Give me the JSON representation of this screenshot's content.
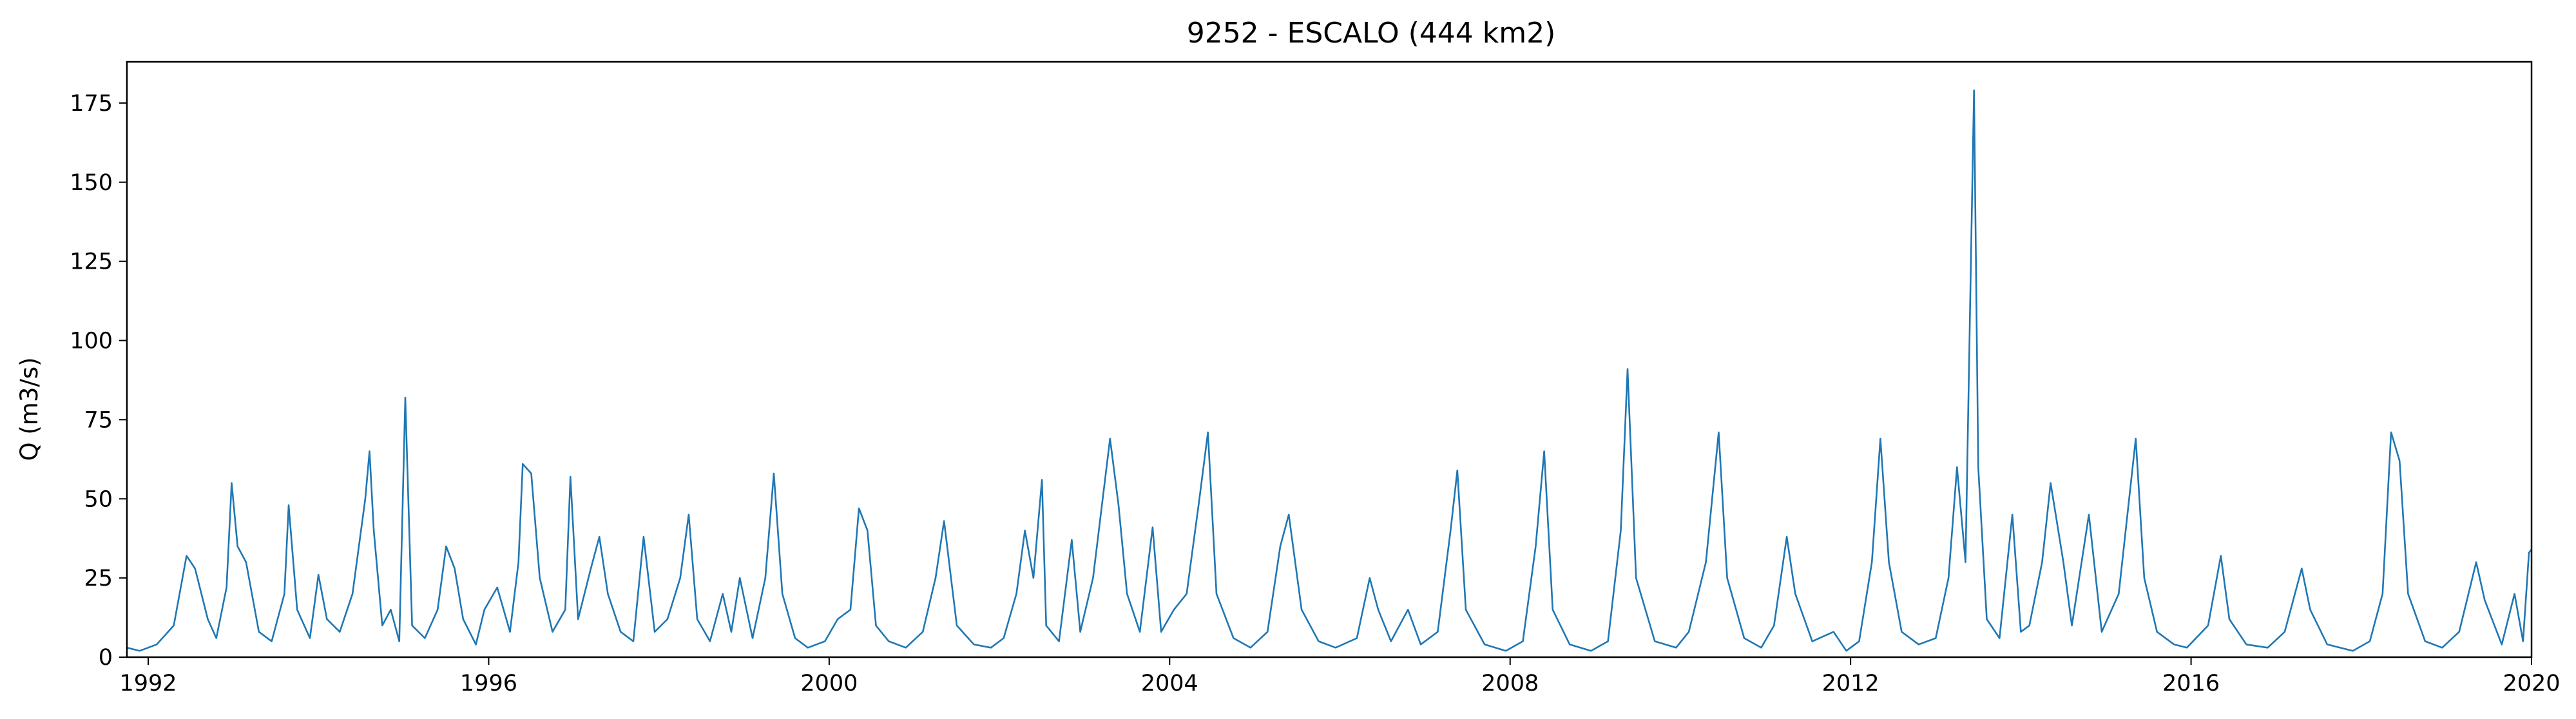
{
  "chart_data": {
    "type": "line",
    "title": "9252 - ESCALO (444 km2)",
    "xlabel": "",
    "ylabel": "Q (m3/s)",
    "xlim": [
      1991.75,
      2020.0
    ],
    "ylim": [
      0,
      188
    ],
    "x_ticks": [
      1992,
      1996,
      2000,
      2004,
      2008,
      2012,
      2016,
      2020
    ],
    "x_tick_labels": [
      "1992",
      "1996",
      "2000",
      "2004",
      "2008",
      "2012",
      "2016",
      "2020"
    ],
    "y_ticks": [
      0,
      25,
      50,
      75,
      100,
      125,
      150,
      175
    ],
    "y_tick_labels": [
      "0",
      "25",
      "50",
      "75",
      "100",
      "125",
      "150",
      "175"
    ],
    "grid": false,
    "line_color": "#1f77b4",
    "series": [
      {
        "name": "",
        "points": [
          [
            1991.75,
            3
          ],
          [
            1991.9,
            2
          ],
          [
            1992.1,
            4
          ],
          [
            1992.3,
            10
          ],
          [
            1992.45,
            32
          ],
          [
            1992.55,
            28
          ],
          [
            1992.7,
            12
          ],
          [
            1992.8,
            6
          ],
          [
            1992.92,
            22
          ],
          [
            1992.98,
            55
          ],
          [
            1993.05,
            35
          ],
          [
            1993.15,
            30
          ],
          [
            1993.3,
            8
          ],
          [
            1993.45,
            5
          ],
          [
            1993.6,
            20
          ],
          [
            1993.65,
            48
          ],
          [
            1993.75,
            15
          ],
          [
            1993.9,
            6
          ],
          [
            1994.0,
            26
          ],
          [
            1994.1,
            12
          ],
          [
            1994.25,
            8
          ],
          [
            1994.4,
            20
          ],
          [
            1994.55,
            50
          ],
          [
            1994.6,
            65
          ],
          [
            1994.65,
            40
          ],
          [
            1994.75,
            10
          ],
          [
            1994.85,
            15
          ],
          [
            1994.95,
            5
          ],
          [
            1995.02,
            82
          ],
          [
            1995.1,
            10
          ],
          [
            1995.25,
            6
          ],
          [
            1995.4,
            15
          ],
          [
            1995.5,
            35
          ],
          [
            1995.6,
            28
          ],
          [
            1995.7,
            12
          ],
          [
            1995.85,
            4
          ],
          [
            1995.95,
            15
          ],
          [
            1996.1,
            22
          ],
          [
            1996.25,
            8
          ],
          [
            1996.35,
            30
          ],
          [
            1996.4,
            61
          ],
          [
            1996.5,
            58
          ],
          [
            1996.6,
            25
          ],
          [
            1996.75,
            8
          ],
          [
            1996.9,
            15
          ],
          [
            1996.96,
            57
          ],
          [
            1997.05,
            12
          ],
          [
            1997.2,
            28
          ],
          [
            1997.3,
            38
          ],
          [
            1997.4,
            20
          ],
          [
            1997.55,
            8
          ],
          [
            1997.7,
            5
          ],
          [
            1997.82,
            38
          ],
          [
            1997.95,
            8
          ],
          [
            1998.1,
            12
          ],
          [
            1998.25,
            25
          ],
          [
            1998.35,
            45
          ],
          [
            1998.45,
            12
          ],
          [
            1998.6,
            5
          ],
          [
            1998.75,
            20
          ],
          [
            1998.85,
            8
          ],
          [
            1998.95,
            25
          ],
          [
            1999.1,
            6
          ],
          [
            1999.25,
            25
          ],
          [
            1999.35,
            58
          ],
          [
            1999.45,
            20
          ],
          [
            1999.6,
            6
          ],
          [
            1999.75,
            3
          ],
          [
            1999.95,
            5
          ],
          [
            2000.1,
            12
          ],
          [
            2000.25,
            15
          ],
          [
            2000.35,
            47
          ],
          [
            2000.45,
            40
          ],
          [
            2000.55,
            10
          ],
          [
            2000.7,
            5
          ],
          [
            2000.9,
            3
          ],
          [
            2001.1,
            8
          ],
          [
            2001.25,
            25
          ],
          [
            2001.35,
            43
          ],
          [
            2001.5,
            10
          ],
          [
            2001.7,
            4
          ],
          [
            2001.9,
            3
          ],
          [
            2002.05,
            6
          ],
          [
            2002.2,
            20
          ],
          [
            2002.3,
            40
          ],
          [
            2002.4,
            25
          ],
          [
            2002.5,
            56
          ],
          [
            2002.55,
            10
          ],
          [
            2002.7,
            5
          ],
          [
            2002.85,
            37
          ],
          [
            2002.95,
            8
          ],
          [
            2003.1,
            25
          ],
          [
            2003.3,
            69
          ],
          [
            2003.4,
            48
          ],
          [
            2003.5,
            20
          ],
          [
            2003.65,
            8
          ],
          [
            2003.8,
            41
          ],
          [
            2003.9,
            8
          ],
          [
            2004.05,
            15
          ],
          [
            2004.2,
            20
          ],
          [
            2004.35,
            50
          ],
          [
            2004.45,
            71
          ],
          [
            2004.55,
            20
          ],
          [
            2004.75,
            6
          ],
          [
            2004.95,
            3
          ],
          [
            2005.15,
            8
          ],
          [
            2005.3,
            35
          ],
          [
            2005.4,
            45
          ],
          [
            2005.55,
            15
          ],
          [
            2005.75,
            5
          ],
          [
            2005.95,
            3
          ],
          [
            2006.2,
            6
          ],
          [
            2006.35,
            25
          ],
          [
            2006.45,
            15
          ],
          [
            2006.6,
            5
          ],
          [
            2006.8,
            15
          ],
          [
            2006.95,
            4
          ],
          [
            2007.15,
            8
          ],
          [
            2007.3,
            40
          ],
          [
            2007.38,
            59
          ],
          [
            2007.48,
            15
          ],
          [
            2007.7,
            4
          ],
          [
            2007.95,
            2
          ],
          [
            2008.15,
            5
          ],
          [
            2008.3,
            35
          ],
          [
            2008.4,
            65
          ],
          [
            2008.5,
            15
          ],
          [
            2008.7,
            4
          ],
          [
            2008.95,
            2
          ],
          [
            2009.15,
            5
          ],
          [
            2009.3,
            40
          ],
          [
            2009.38,
            91
          ],
          [
            2009.48,
            25
          ],
          [
            2009.7,
            5
          ],
          [
            2009.95,
            3
          ],
          [
            2010.1,
            8
          ],
          [
            2010.3,
            30
          ],
          [
            2010.45,
            71
          ],
          [
            2010.55,
            25
          ],
          [
            2010.75,
            6
          ],
          [
            2010.95,
            3
          ],
          [
            2011.1,
            10
          ],
          [
            2011.25,
            38
          ],
          [
            2011.35,
            20
          ],
          [
            2011.55,
            5
          ],
          [
            2011.8,
            8
          ],
          [
            2011.95,
            2
          ],
          [
            2012.1,
            5
          ],
          [
            2012.25,
            30
          ],
          [
            2012.35,
            69
          ],
          [
            2012.45,
            30
          ],
          [
            2012.6,
            8
          ],
          [
            2012.8,
            4
          ],
          [
            2013.0,
            6
          ],
          [
            2013.15,
            25
          ],
          [
            2013.25,
            60
          ],
          [
            2013.35,
            30
          ],
          [
            2013.45,
            179
          ],
          [
            2013.5,
            60
          ],
          [
            2013.6,
            12
          ],
          [
            2013.75,
            6
          ],
          [
            2013.9,
            45
          ],
          [
            2014.0,
            8
          ],
          [
            2014.1,
            10
          ],
          [
            2014.25,
            30
          ],
          [
            2014.35,
            55
          ],
          [
            2014.5,
            30
          ],
          [
            2014.6,
            10
          ],
          [
            2014.8,
            45
          ],
          [
            2014.95,
            8
          ],
          [
            2015.15,
            20
          ],
          [
            2015.35,
            69
          ],
          [
            2015.45,
            25
          ],
          [
            2015.6,
            8
          ],
          [
            2015.8,
            4
          ],
          [
            2015.95,
            3
          ],
          [
            2016.2,
            10
          ],
          [
            2016.35,
            32
          ],
          [
            2016.45,
            12
          ],
          [
            2016.65,
            4
          ],
          [
            2016.9,
            3
          ],
          [
            2017.1,
            8
          ],
          [
            2017.3,
            28
          ],
          [
            2017.4,
            15
          ],
          [
            2017.6,
            4
          ],
          [
            2017.9,
            2
          ],
          [
            2018.1,
            5
          ],
          [
            2018.25,
            20
          ],
          [
            2018.35,
            71
          ],
          [
            2018.45,
            62
          ],
          [
            2018.55,
            20
          ],
          [
            2018.75,
            5
          ],
          [
            2018.95,
            3
          ],
          [
            2019.15,
            8
          ],
          [
            2019.35,
            30
          ],
          [
            2019.45,
            18
          ],
          [
            2019.65,
            4
          ],
          [
            2019.8,
            20
          ],
          [
            2019.9,
            5
          ],
          [
            2019.97,
            33
          ],
          [
            2020.0,
            34
          ]
        ]
      }
    ]
  }
}
